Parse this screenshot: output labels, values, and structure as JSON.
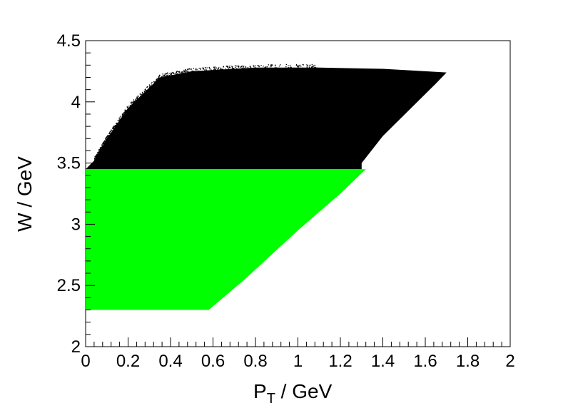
{
  "chart_data": {
    "type": "scatter",
    "title": "",
    "xlabel_main": "P",
    "xlabel_sub": "T",
    "xlabel_rest": " / GeV",
    "ylabel": "W / GeV",
    "xlim": [
      0,
      2
    ],
    "ylim": [
      2,
      4.5
    ],
    "xticks": [
      0,
      0.2,
      0.4,
      0.6,
      0.8,
      1,
      1.2,
      1.4,
      1.6,
      1.8,
      2
    ],
    "xtick_labels": [
      "0",
      "0.2",
      "0.4",
      "0.6",
      "0.8",
      "1",
      "1.2",
      "1.4",
      "1.6",
      "1.8",
      "2"
    ],
    "yticks": [
      2,
      2.5,
      3,
      3.5,
      4,
      4.5
    ],
    "ytick_labels": [
      "2",
      "2.5",
      "3",
      "3.5",
      "4",
      "4.5"
    ],
    "grid": false,
    "series": [
      {
        "color": "#000000",
        "region_polygon": [
          [
            0,
            3.45
          ],
          [
            0.04,
            3.52
          ],
          [
            0.1,
            3.7
          ],
          [
            0.2,
            3.95
          ],
          [
            0.35,
            4.2
          ],
          [
            0.5,
            4.25
          ],
          [
            0.8,
            4.28
          ],
          [
            1.1,
            4.28
          ],
          [
            1.4,
            4.27
          ],
          [
            1.6,
            4.25
          ],
          [
            1.7,
            4.24
          ],
          [
            1.65,
            4.15
          ],
          [
            1.4,
            3.72
          ],
          [
            1.3,
            3.5
          ],
          [
            1.3,
            3.45
          ]
        ]
      },
      {
        "color": "#00ff00",
        "region_polygon": [
          [
            0,
            2.3
          ],
          [
            0.58,
            2.3
          ],
          [
            0.75,
            2.55
          ],
          [
            1.0,
            2.95
          ],
          [
            1.2,
            3.25
          ],
          [
            1.32,
            3.45
          ],
          [
            0,
            3.45
          ]
        ]
      }
    ]
  }
}
